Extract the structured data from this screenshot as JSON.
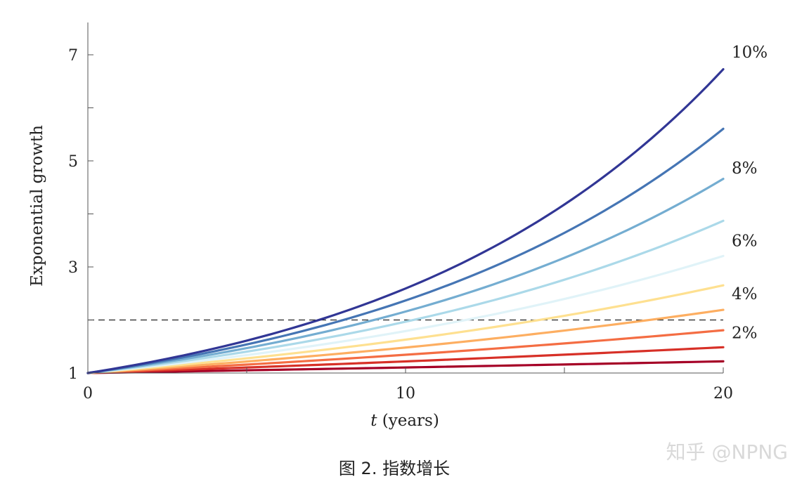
{
  "chart_data": {
    "type": "line",
    "xlabel_italic": "t",
    "xlabel_rest": " (years)",
    "ylabel": "Exponential growth",
    "xlim": [
      0,
      20
    ],
    "ylim": [
      1,
      7.6
    ],
    "xticks": [
      0,
      10,
      20
    ],
    "xticks_minor": [
      5,
      15
    ],
    "yticks": [
      1,
      3,
      5,
      7
    ],
    "yticks_minor": [
      2,
      4,
      6
    ],
    "reference_line": {
      "y": 2,
      "style": "dashed"
    },
    "x": [
      0,
      2,
      4,
      6,
      8,
      10,
      12,
      14,
      16,
      18,
      20
    ],
    "series": [
      {
        "rate": 0.01,
        "color": "#a50026",
        "values": [
          1.0,
          1.0201,
          1.0406,
          1.0615,
          1.0829,
          1.1046,
          1.1268,
          1.1495,
          1.1726,
          1.1961,
          1.2202
        ]
      },
      {
        "rate": 0.02,
        "color": "#d73027",
        "values": [
          1.0,
          1.0404,
          1.0824,
          1.1262,
          1.1717,
          1.219,
          1.2682,
          1.3195,
          1.3728,
          1.4282,
          1.4859
        ]
      },
      {
        "rate": 0.03,
        "color": "#f46d43",
        "values": [
          1.0,
          1.0609,
          1.1255,
          1.1941,
          1.2668,
          1.3439,
          1.4258,
          1.5126,
          1.6047,
          1.7024,
          1.8061
        ]
      },
      {
        "rate": 0.04,
        "color": "#fdae61",
        "values": [
          1.0,
          1.0816,
          1.1699,
          1.2653,
          1.3686,
          1.4802,
          1.601,
          1.7317,
          1.873,
          2.0258,
          2.1911
        ]
      },
      {
        "rate": 0.05,
        "color": "#fee090",
        "values": [
          1.0,
          1.1025,
          1.2155,
          1.3401,
          1.4775,
          1.6289,
          1.7959,
          1.9799,
          2.1829,
          2.4066,
          2.6533
        ]
      },
      {
        "rate": 0.06,
        "color": "#e0f3f8",
        "values": [
          1.0,
          1.1236,
          1.2625,
          1.4185,
          1.5938,
          1.7908,
          2.0122,
          2.2609,
          2.5404,
          2.8543,
          3.2071
        ]
      },
      {
        "rate": 0.07,
        "color": "#abd9e9",
        "values": [
          1.0,
          1.1449,
          1.3108,
          1.5007,
          1.7182,
          1.9672,
          2.2522,
          2.5785,
          2.9522,
          3.3799,
          3.8697
        ]
      },
      {
        "rate": 0.08,
        "color": "#74add1",
        "values": [
          1.0,
          1.1664,
          1.3605,
          1.5869,
          1.8509,
          2.1589,
          2.5182,
          2.9372,
          3.4259,
          3.996,
          4.661
        ]
      },
      {
        "rate": 0.09,
        "color": "#4575b4",
        "values": [
          1.0,
          1.1881,
          1.4116,
          1.6771,
          1.9926,
          2.3674,
          2.8127,
          3.3417,
          3.9703,
          4.7171,
          5.6044
        ]
      },
      {
        "rate": 0.1,
        "color": "#313695",
        "values": [
          1.0,
          1.21,
          1.4641,
          1.7716,
          2.1436,
          2.5937,
          3.1384,
          3.7975,
          4.595,
          5.5599,
          6.7275
        ]
      }
    ],
    "end_labels": [
      {
        "text": "10%",
        "y": 7.05
      },
      {
        "text": "8%",
        "y": 4.87
      },
      {
        "text": "6%",
        "y": 3.5
      },
      {
        "text": "4%",
        "y": 2.5
      },
      {
        "text": "2%",
        "y": 1.76
      }
    ]
  },
  "caption": "图 2. 指数增长",
  "watermark": "知乎 @NPNG"
}
